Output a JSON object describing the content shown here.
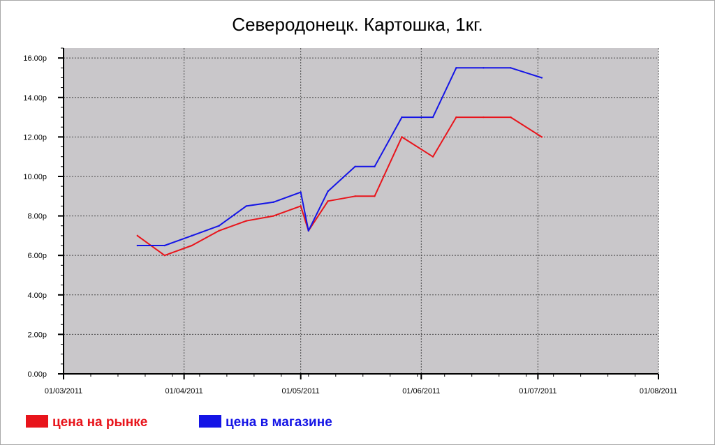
{
  "chart_data": {
    "type": "line",
    "title": "Северодонецк. Картошка, 1кг.",
    "xlabel": "",
    "ylabel": "",
    "ylim": [
      0,
      16.5
    ],
    "xlim": [
      "2011-03-01",
      "2011-08-01"
    ],
    "y_ticks": [
      0,
      2,
      4,
      6,
      8,
      10,
      12,
      14,
      16
    ],
    "y_tick_labels": [
      "0.00р",
      "2.00р",
      "4.00р",
      "6.00р",
      "8.00р",
      "10.00р",
      "12.00р",
      "14.00р",
      "16.00р"
    ],
    "x_ticks": [
      "2011-03-01",
      "2011-04-01",
      "2011-05-01",
      "2011-06-01",
      "2011-07-01",
      "2011-08-01"
    ],
    "x_tick_labels": [
      "01/03/2011",
      "01/04/2011",
      "01/05/2011",
      "01/06/2011",
      "01/07/2011",
      "01/08/2011"
    ],
    "grid": true,
    "background_color": "#c9c7ca",
    "legend_position": "bottom-left",
    "series": [
      {
        "name": "цена на рынке",
        "color": "#e8141b",
        "points": [
          [
            "2011-03-20",
            7.0
          ],
          [
            "2011-03-27",
            6.0
          ],
          [
            "2011-04-03",
            6.5
          ],
          [
            "2011-04-10",
            7.25
          ],
          [
            "2011-04-17",
            7.75
          ],
          [
            "2011-04-24",
            8.0
          ],
          [
            "2011-05-01",
            8.5
          ],
          [
            "2011-05-03",
            7.25
          ],
          [
            "2011-05-08",
            8.75
          ],
          [
            "2011-05-15",
            9.0
          ],
          [
            "2011-05-20",
            9.0
          ],
          [
            "2011-05-27",
            12.0
          ],
          [
            "2011-06-04",
            11.0
          ],
          [
            "2011-06-10",
            13.0
          ],
          [
            "2011-06-17",
            13.0
          ],
          [
            "2011-06-24",
            13.0
          ],
          [
            "2011-07-02",
            12.0
          ]
        ]
      },
      {
        "name": "цена в магазине",
        "color": "#1414e6",
        "points": [
          [
            "2011-03-20",
            6.5
          ],
          [
            "2011-03-27",
            6.5
          ],
          [
            "2011-04-03",
            7.0
          ],
          [
            "2011-04-10",
            7.5
          ],
          [
            "2011-04-17",
            8.5
          ],
          [
            "2011-04-24",
            8.7
          ],
          [
            "2011-05-01",
            9.2
          ],
          [
            "2011-05-03",
            7.25
          ],
          [
            "2011-05-08",
            9.25
          ],
          [
            "2011-05-15",
            10.5
          ],
          [
            "2011-05-20",
            10.5
          ],
          [
            "2011-05-27",
            13.0
          ],
          [
            "2011-06-04",
            13.0
          ],
          [
            "2011-06-10",
            15.5
          ],
          [
            "2011-06-17",
            15.5
          ],
          [
            "2011-06-24",
            15.5
          ],
          [
            "2011-07-02",
            15.0
          ]
        ]
      }
    ]
  }
}
